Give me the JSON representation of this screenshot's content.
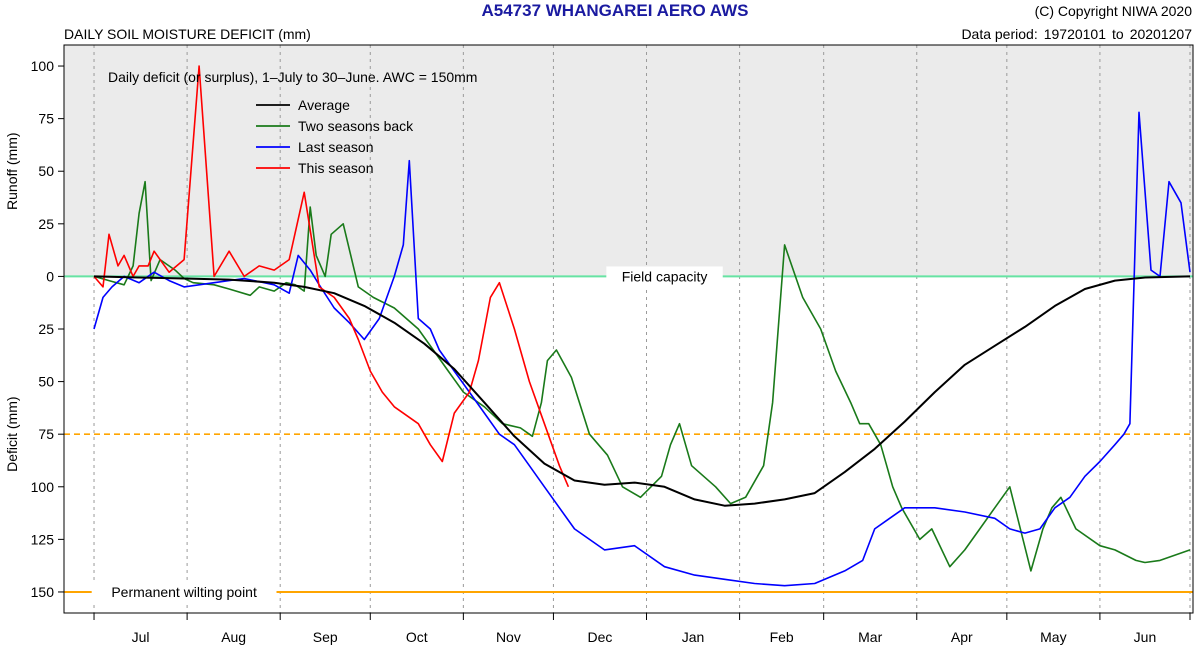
{
  "header": {
    "title": "A54737  WHANGAREI AERO AWS",
    "subtitle": "DAILY SOIL MOISTURE DEFICIT (mm)",
    "copyright": "(C) Copyright NIWA  2020",
    "period_label": "Data period:",
    "period_start": "19720101",
    "period_to": "to",
    "period_end": "20201207"
  },
  "chart_data": {
    "type": "line",
    "annotation": "Daily deficit (or surplus), 1–July to 30–June.  AWC = 150mm",
    "ylabel_top": "Runoff (mm)",
    "ylabel_bottom": "Deficit (mm)",
    "ylim": [
      -110,
      160
    ],
    "y_ticks": [
      {
        "v": -100,
        "label": "100"
      },
      {
        "v": -75,
        "label": "75"
      },
      {
        "v": -50,
        "label": "50"
      },
      {
        "v": -25,
        "label": "25"
      },
      {
        "v": 0,
        "label": "0"
      },
      {
        "v": 25,
        "label": "25"
      },
      {
        "v": 50,
        "label": "50"
      },
      {
        "v": 75,
        "label": "75"
      },
      {
        "v": 100,
        "label": "100"
      },
      {
        "v": 125,
        "label": "125"
      },
      {
        "v": 150,
        "label": "150"
      }
    ],
    "months": [
      "Jul",
      "Aug",
      "Sep",
      "Oct",
      "Nov",
      "Dec",
      "Jan",
      "Feb",
      "Mar",
      "Apr",
      "May",
      "Jun"
    ],
    "x_unit": "day of season (0 = 1 July)",
    "xlim": [
      -10,
      366
    ],
    "reference_lines": {
      "field_capacity": {
        "y": 0,
        "label": "Field capacity",
        "color": "#66e3a3"
      },
      "wilting_point": {
        "y": 150,
        "label": "Permanent wilting point",
        "color": "#ffa500"
      },
      "half_awc": {
        "y": 75,
        "color": "#ffa500"
      }
    },
    "series": [
      {
        "name": "Average",
        "color": "#000000",
        "x": [
          0,
          15,
          30,
          45,
          60,
          70,
          80,
          90,
          100,
          110,
          120,
          130,
          140,
          150,
          160,
          170,
          180,
          190,
          200,
          210,
          220,
          230,
          240,
          250,
          260,
          270,
          280,
          290,
          300,
          310,
          320,
          330,
          340,
          350,
          365
        ],
        "y": [
          0,
          0.5,
          1,
          1.5,
          3,
          5,
          8,
          14,
          22,
          32,
          44,
          60,
          76,
          89,
          97,
          99,
          98,
          100,
          106,
          109,
          108,
          106,
          103,
          93,
          82,
          69,
          55,
          42,
          33,
          24,
          14,
          6,
          2,
          0.5,
          0
        ]
      },
      {
        "name": "Two seasons back",
        "color": "#1a7a1a",
        "x": [
          0,
          5,
          10,
          13,
          15,
          17,
          19,
          22,
          27,
          30,
          33,
          40,
          45,
          52,
          55,
          60,
          64,
          67,
          70,
          72,
          74,
          77,
          79,
          83,
          88,
          93,
          100,
          108,
          113,
          118,
          123,
          130,
          136,
          142,
          146,
          149,
          151,
          154,
          159,
          165,
          171,
          176,
          182,
          189,
          192,
          195,
          199,
          207,
          212,
          217,
          223,
          226,
          230,
          236,
          242,
          247,
          252,
          255,
          258,
          262,
          264,
          266,
          269,
          275,
          279,
          285,
          290,
          295,
          300,
          305,
          312,
          316,
          319,
          322,
          327,
          335,
          340,
          347,
          350,
          355,
          365
        ],
        "x_note": "day of season",
        "y": [
          0,
          2,
          4,
          -5,
          -30,
          -45,
          2,
          -8,
          -3,
          1,
          3,
          4,
          6,
          9,
          5,
          7,
          3,
          4,
          7,
          -33,
          -10,
          0,
          -20,
          -25,
          5,
          10,
          15,
          25,
          35,
          45,
          55,
          62,
          70,
          72,
          76,
          60,
          40,
          35,
          48,
          75,
          85,
          100,
          105,
          95,
          80,
          70,
          90,
          100,
          108,
          105,
          90,
          60,
          -15,
          10,
          25,
          45,
          60,
          70,
          70,
          80,
          90,
          100,
          110,
          125,
          120,
          138,
          130,
          120,
          110,
          100,
          140,
          120,
          110,
          105,
          120,
          128,
          130,
          135,
          136,
          135,
          130
        ]
      },
      {
        "name": "Last season",
        "color": "#0000ff",
        "x": [
          0,
          3,
          6,
          10,
          15,
          20,
          25,
          30,
          40,
          50,
          60,
          65,
          68,
          72,
          75,
          80,
          85,
          90,
          95,
          100,
          103,
          105,
          108,
          112,
          115,
          120,
          125,
          130,
          135,
          140,
          145,
          150,
          160,
          170,
          180,
          190,
          200,
          210,
          220,
          230,
          240,
          250,
          256,
          260,
          265,
          270,
          280,
          290,
          300,
          305,
          310,
          315,
          320,
          325,
          330,
          335,
          340,
          343,
          345,
          348,
          352,
          355,
          358,
          362,
          365
        ],
        "y": [
          25,
          10,
          5,
          0,
          3,
          -2,
          2,
          5,
          3,
          1,
          4,
          8,
          -10,
          -3,
          4,
          15,
          22,
          30,
          20,
          0,
          -15,
          -55,
          20,
          25,
          35,
          45,
          55,
          65,
          75,
          80,
          90,
          100,
          120,
          130,
          128,
          138,
          142,
          144,
          146,
          147,
          146,
          140,
          135,
          120,
          115,
          110,
          110,
          112,
          115,
          120,
          122,
          120,
          110,
          105,
          95,
          88,
          80,
          75,
          70,
          -78,
          -3,
          0,
          -45,
          -35,
          -2
        ]
      },
      {
        "name": "This season",
        "color": "#ff0000",
        "x": [
          0,
          3,
          5,
          8,
          10,
          13,
          15,
          18,
          20,
          25,
          30,
          35,
          40,
          45,
          50,
          55,
          60,
          65,
          70,
          75,
          80,
          85,
          88,
          92,
          96,
          100,
          108,
          112,
          116,
          120,
          125,
          128,
          130,
          132,
          135,
          140,
          145,
          150,
          155,
          158
        ],
        "y": [
          0,
          5,
          -20,
          -5,
          -10,
          0,
          -5,
          -5,
          -12,
          -2,
          -8,
          -100,
          0,
          -12,
          0,
          -5,
          -3,
          -8,
          -40,
          5,
          10,
          20,
          30,
          45,
          55,
          62,
          70,
          80,
          88,
          65,
          55,
          40,
          25,
          10,
          3,
          25,
          50,
          70,
          90,
          100
        ]
      }
    ]
  }
}
